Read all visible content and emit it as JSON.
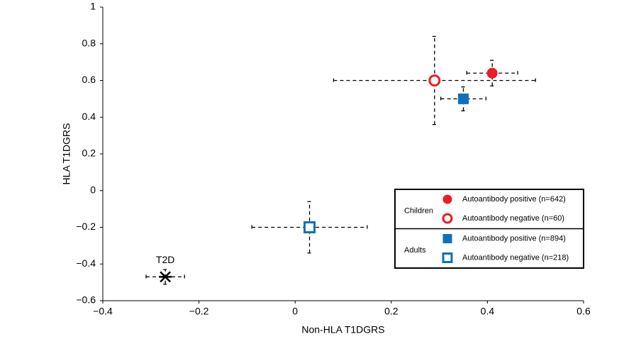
{
  "chart_data": {
    "type": "scatter",
    "xlabel": "Non-HLA T1DGRS",
    "ylabel": "HLA T1DGRS",
    "xlim": [
      -0.4,
      0.6
    ],
    "xticks": [
      {
        "value": -0.4,
        "label": "−0.4"
      },
      {
        "value": -0.2,
        "label": "−0.2"
      },
      0,
      0.2,
      0.4,
      0.6
    ],
    "ylim": [
      -0.6,
      1
    ],
    "yticks": [
      {
        "value": -0.6,
        "label": "−0.6"
      },
      {
        "value": -0.4,
        "label": "−0.4"
      },
      {
        "value": -0.2,
        "label": "−0.2"
      },
      0,
      0.2,
      0.4,
      0.6,
      0.8,
      1
    ],
    "legend_groups": [
      "Children",
      "Adults"
    ],
    "series": [
      {
        "name": "Autoantibody positive (n=642)",
        "group": 0,
        "color": "#ee1c25",
        "marker": "circle",
        "filled": true,
        "x": [
          0.41
        ],
        "values": [
          0.64
        ],
        "xerr": [
          0.053
        ],
        "yerr": [
          0.07
        ]
      },
      {
        "name": "Autoantibody negative (n=60)",
        "group": 0,
        "color": "#ee1c25",
        "marker": "circle",
        "filled": false,
        "x": [
          0.29
        ],
        "values": [
          0.6
        ],
        "xerr": [
          0.21
        ],
        "yerr": [
          0.24
        ]
      },
      {
        "name": "Autoantibody positive (n=894)",
        "group": 1,
        "color": "#0f6fbf",
        "marker": "square",
        "filled": true,
        "x": [
          0.35
        ],
        "values": [
          0.5
        ],
        "xerr": [
          0.047
        ],
        "yerr": [
          0.065
        ]
      },
      {
        "name": "Autoantibody negative (n=218)",
        "group": 1,
        "color": "#0f6fbf",
        "marker": "square",
        "filled": false,
        "x": [
          0.03
        ],
        "values": [
          -0.2
        ],
        "xerr": [
          0.12
        ],
        "yerr": [
          0.14
        ]
      },
      {
        "name": "T2D",
        "color": "#000000",
        "marker": "star",
        "filled": false,
        "x": [
          -0.27
        ],
        "values": [
          -0.47
        ],
        "xerr": [
          0.04
        ],
        "yerr": [
          0.04
        ]
      }
    ]
  }
}
